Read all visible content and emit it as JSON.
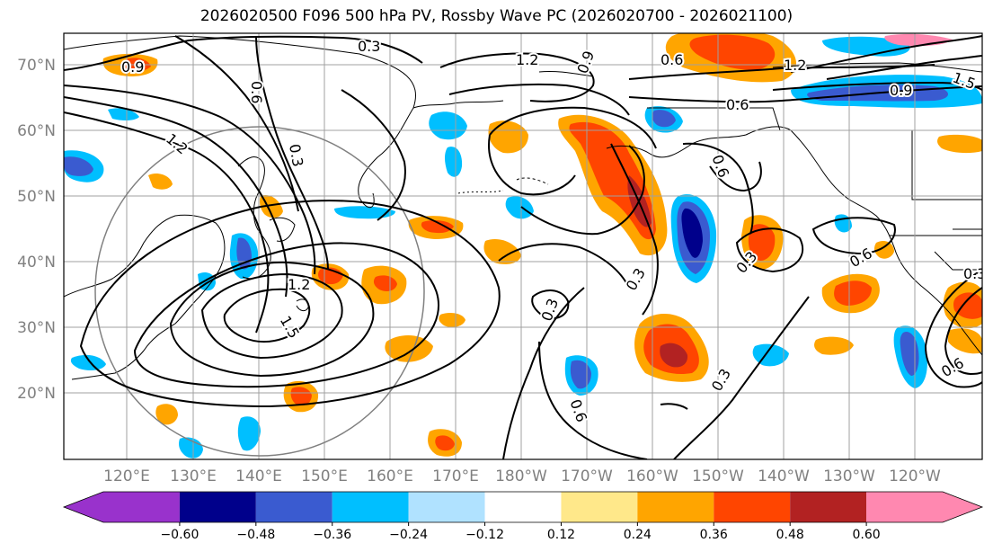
{
  "title": "2026020500 F096 500 hPa PV, Rossby Wave PC (2026020700 - 2026021100)",
  "map": {
    "lat_labels": [
      "70°N",
      "60°N",
      "50°N",
      "40°N",
      "30°N",
      "20°N"
    ],
    "lon_labels": [
      "120°E",
      "130°E",
      "140°E",
      "150°E",
      "160°E",
      "170°E",
      "180°W",
      "170°W",
      "160°W",
      "150°W",
      "140°W",
      "130°W",
      "120°W"
    ],
    "contour_labels": [
      "0.3",
      "1.2",
      "0.9",
      "0.6",
      "1.2",
      "1.5",
      "0.9",
      "0.6",
      "0.9",
      "1.2",
      "0.3",
      "1.2",
      "1.5",
      "0.3",
      "0.3",
      "0.6",
      "0.3",
      "0.6",
      "0.6",
      "0.3",
      "0.6",
      "0.6",
      "0.3"
    ]
  },
  "colorbar": {
    "ticks": [
      "−0.60",
      "−0.48",
      "−0.36",
      "−0.24",
      "−0.12",
      "0.12",
      "0.24",
      "0.36",
      "0.48",
      "0.60"
    ],
    "colors": [
      "#9932cc",
      "#00008b",
      "#3a5bd0",
      "#00bfff",
      "#b0e2ff",
      "#ffffff",
      "#ffe88a",
      "#ffa500",
      "#ff4500",
      "#b22222",
      "#ff88b0"
    ]
  }
}
